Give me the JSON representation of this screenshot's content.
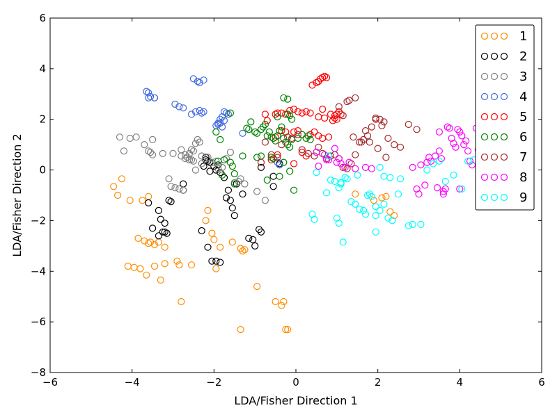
{
  "chart_data": {
    "type": "scatter",
    "title": "",
    "xlabel": "LDA/Fisher Direction 1",
    "ylabel": "LDA/Fisher Direction 2",
    "xlim": [
      -6,
      6
    ],
    "ylim": [
      -8,
      6
    ],
    "xticks": [
      -6,
      -4,
      -2,
      0,
      2,
      4,
      6
    ],
    "yticks": [
      -8,
      -6,
      -4,
      -2,
      0,
      2,
      4,
      6
    ],
    "xtick_labels": [
      "−6",
      "−4",
      "−2",
      "0",
      "2",
      "4",
      "6"
    ],
    "ytick_labels": [
      "−8",
      "−6",
      "−4",
      "−2",
      "0",
      "2",
      "4",
      "6"
    ],
    "grid": false,
    "legend_position": "top-right",
    "marker": "open-circle",
    "series": [
      {
        "name": "1",
        "color": "#ff8c00",
        "x": [
          -4.45,
          -4.35,
          -4.25,
          -4.05,
          -3.75,
          -3.6,
          -3.85,
          -3.7,
          -3.6,
          -3.45,
          -3.55,
          -3.35,
          -3.2,
          -4.1,
          -3.95,
          -3.8,
          -3.65,
          -3.45,
          -3.3,
          -3.2,
          -2.9,
          -2.85,
          -2.55,
          -2.15,
          -2.2,
          -2.05,
          -2.0,
          -1.85,
          -1.95,
          -1.55,
          -1.35,
          -1.25,
          -1.3,
          -2.8,
          -0.95,
          -0.5,
          -0.35,
          -0.3,
          -0.25,
          -0.2,
          -1.35,
          1.45,
          1.9,
          2.1,
          2.2,
          2.3,
          2.4
        ],
        "y": [
          -0.65,
          -1.0,
          -0.35,
          -1.2,
          -1.2,
          -1.05,
          -2.7,
          -2.8,
          -2.9,
          -2.95,
          -2.85,
          -2.85,
          -3.05,
          -3.8,
          -3.85,
          -3.9,
          -4.15,
          -3.8,
          -4.35,
          -3.7,
          -3.6,
          -3.75,
          -3.75,
          -1.6,
          -2.0,
          -2.5,
          -2.75,
          -3.05,
          -3.9,
          -2.85,
          -3.1,
          -3.15,
          -3.2,
          -5.2,
          -4.6,
          -5.2,
          -5.35,
          -5.2,
          -6.3,
          -6.3,
          -6.3,
          -0.95,
          -1.2,
          -1.1,
          -1.05,
          -1.65,
          -1.8
        ]
      },
      {
        "name": "2",
        "color": "#000000",
        "x": [
          -3.6,
          -3.5,
          -3.35,
          -3.3,
          -3.2,
          -3.1,
          -3.05,
          -3.2,
          -3.15,
          -3.35,
          -3.25,
          -2.75,
          -2.75,
          -2.2,
          -2.1,
          -2.0,
          -1.9,
          -1.95,
          -1.85,
          -1.75,
          -1.65,
          -1.6,
          -1.55,
          -1.5,
          -1.45,
          -1.3,
          -1.15,
          -1.05,
          -1.0,
          -0.9,
          -0.85,
          -1.95,
          -1.85,
          -2.05,
          -2.15,
          -2.3,
          -2.2,
          -2.1,
          -0.55,
          -0.4,
          -0.55,
          -0.85,
          -1.7,
          -2.25,
          -2.15
        ],
        "y": [
          -1.3,
          -2.3,
          -1.6,
          -1.95,
          -2.1,
          -1.2,
          -1.25,
          -2.45,
          -2.5,
          -2.6,
          -2.45,
          -0.55,
          -0.8,
          0.5,
          0.3,
          0.15,
          0.2,
          0.0,
          -0.1,
          -0.3,
          -0.8,
          -1.2,
          -1.5,
          -1.8,
          -0.55,
          -0.95,
          -2.7,
          -2.75,
          -3.0,
          -2.35,
          -2.45,
          -3.6,
          -3.65,
          -3.6,
          -3.05,
          -2.4,
          0.4,
          -0.05,
          -0.25,
          0.25,
          -0.65,
          0.1,
          -1.1,
          0.15,
          0.35
        ]
      },
      {
        "name": "3",
        "color": "#808080",
        "x": [
          -4.3,
          -4.2,
          -4.05,
          -3.9,
          -3.7,
          -3.6,
          -3.5,
          -3.55,
          -3.5,
          -3.25,
          -3.1,
          -3.05,
          -2.95,
          -2.85,
          -2.75,
          -2.7,
          -2.65,
          -2.6,
          -2.55,
          -2.5,
          -2.45,
          -2.4,
          -2.35,
          -2.6,
          -2.5,
          -2.45,
          -2.3,
          -2.15,
          -2.05,
          -1.95,
          -1.9,
          -1.8,
          -1.7,
          -1.6,
          -1.5,
          -1.4,
          -1.35,
          -1.25,
          -2.8,
          -2.7,
          -3.0,
          -2.8,
          -0.95,
          -0.75,
          -2.55,
          -2.3
        ],
        "y": [
          1.3,
          0.75,
          1.25,
          1.3,
          1.0,
          0.75,
          0.6,
          0.7,
          1.2,
          0.65,
          -0.35,
          -0.65,
          -0.7,
          -0.75,
          -0.8,
          0.6,
          0.5,
          0.4,
          0.8,
          0.75,
          1.05,
          1.2,
          1.1,
          0.65,
          0.35,
          0.0,
          0.55,
          0.5,
          0.3,
          0.35,
          0.05,
          0.1,
          0.45,
          0.7,
          -0.5,
          -0.45,
          -0.35,
          -0.55,
          0.55,
          0.45,
          0.65,
          0.8,
          -0.85,
          -1.2,
          0.4,
          0.25
        ]
      },
      {
        "name": "4",
        "color": "#4169e1",
        "x": [
          -3.65,
          -3.6,
          -3.55,
          -3.45,
          -3.6,
          -3.45,
          -2.95,
          -2.85,
          -2.75,
          -2.55,
          -2.45,
          -2.35,
          -2.3,
          -2.25,
          -2.5,
          -2.4,
          -2.35,
          -2.25,
          -1.95,
          -1.9,
          -1.85,
          -1.8,
          -1.75,
          -1.7,
          -1.65,
          -1.75,
          -1.8,
          -1.9,
          -1.85,
          -1.3,
          -0.45,
          -0.4
        ],
        "y": [
          3.1,
          3.05,
          2.9,
          2.85,
          2.85,
          2.85,
          2.6,
          2.5,
          2.45,
          2.2,
          2.3,
          2.35,
          2.25,
          2.3,
          3.6,
          3.5,
          3.45,
          3.55,
          1.75,
          1.85,
          2.0,
          2.1,
          2.3,
          2.25,
          2.2,
          1.95,
          1.7,
          1.8,
          1.85,
          1.45,
          0.3,
          0.2
        ]
      },
      {
        "name": "5",
        "color": "#ff0000",
        "x": [
          -0.75,
          -0.7,
          -0.5,
          -0.45,
          -0.35,
          -0.25,
          -0.15,
          -0.05,
          0.05,
          0.15,
          0.25,
          0.35,
          0.4,
          0.5,
          0.55,
          0.6,
          0.65,
          0.7,
          0.75,
          0.65,
          0.7,
          0.55,
          0.85,
          0.95,
          1.0,
          1.05,
          1.1,
          0.95,
          0.9,
          1.0,
          0.55,
          0.65,
          0.8,
          0.45,
          0.35,
          -0.35,
          -0.25,
          -0.05,
          0.05,
          -0.5,
          -0.45,
          -0.6,
          0.25,
          0.15,
          -0.05
        ],
        "y": [
          2.2,
          1.95,
          2.2,
          2.25,
          2.25,
          2.2,
          2.35,
          2.4,
          2.3,
          2.25,
          2.3,
          2.25,
          3.35,
          3.45,
          3.5,
          3.6,
          3.65,
          3.7,
          3.65,
          2.4,
          2.05,
          2.1,
          2.2,
          2.15,
          2.2,
          2.3,
          2.2,
          2.05,
          1.95,
          2.0,
          1.35,
          1.25,
          1.3,
          1.5,
          1.4,
          1.55,
          1.5,
          1.5,
          1.55,
          1.3,
          0.6,
          0.4,
          0.55,
          0.7,
          0.25
        ]
      },
      {
        "name": "6",
        "color": "#008000",
        "x": [
          -1.95,
          -1.85,
          -1.75,
          -1.6,
          -1.55,
          -1.5,
          -1.3,
          -1.2,
          -1.15,
          -1.1,
          -1.0,
          -0.95,
          -0.85,
          -0.8,
          -0.75,
          -0.7,
          -0.65,
          -0.6,
          -0.55,
          -0.5,
          -0.45,
          -0.4,
          -0.35,
          -0.3,
          -0.25,
          -0.2,
          -0.15,
          -0.1,
          0.05,
          0.15,
          0.25,
          0.3,
          0.35,
          -0.3,
          -0.2,
          -0.15,
          -0.95,
          -0.85,
          -0.7,
          -1.5,
          -1.6,
          -1.9,
          -1.8,
          -0.1,
          -0.2,
          -0.45,
          -0.55,
          -0.3,
          -0.15,
          -0.05,
          -0.6,
          -0.4
        ],
        "y": [
          1.5,
          1.2,
          0.4,
          0.3,
          0.15,
          -0.15,
          0.55,
          1.65,
          1.6,
          1.9,
          1.5,
          1.45,
          1.6,
          1.7,
          1.8,
          1.35,
          1.5,
          1.3,
          1.25,
          1.15,
          1.35,
          1.55,
          1.7,
          1.25,
          1.1,
          1.0,
          0.9,
          1.2,
          1.25,
          1.4,
          1.25,
          1.35,
          1.2,
          2.85,
          2.8,
          2.15,
          0.5,
          0.55,
          -0.4,
          -0.55,
          2.25,
          0.35,
          -0.2,
          2.0,
          2.2,
          2.1,
          0.45,
          0.3,
          -0.05,
          -0.8,
          0.5,
          -0.25
        ]
      },
      {
        "name": "7",
        "color": "#a52a2a",
        "x": [
          -0.85,
          -0.75,
          -0.6,
          -0.45,
          -0.35,
          -0.2,
          -0.1,
          0.05,
          0.15,
          0.3,
          0.45,
          0.55,
          0.65,
          0.75,
          0.85,
          0.95,
          1.05,
          1.15,
          1.25,
          1.35,
          1.45,
          1.55,
          1.65,
          1.75,
          1.85,
          1.95,
          2.05,
          2.15,
          2.25,
          2.4,
          2.55,
          2.75,
          2.95,
          1.3,
          1.45,
          1.05,
          1.15,
          1.25,
          1.4,
          1.6,
          1.7,
          1.8,
          2.0,
          1.95,
          2.1,
          2.2
        ],
        "y": [
          0.3,
          1.1,
          0.6,
          0.5,
          1.0,
          1.3,
          1.25,
          1.4,
          0.8,
          0.65,
          0.55,
          0.9,
          0.65,
          0.45,
          0.55,
          0.6,
          0.45,
          0.1,
          0.05,
          0.25,
          0.6,
          1.1,
          1.2,
          1.35,
          1.7,
          2.0,
          2.0,
          1.9,
          1.25,
          1.0,
          0.9,
          1.8,
          1.6,
          2.75,
          2.85,
          2.5,
          2.15,
          2.7,
          1.3,
          1.1,
          1.55,
          1.1,
          0.85,
          2.05,
          1.75,
          0.5
        ]
      },
      {
        "name": "8",
        "color": "#ff00ff",
        "x": [
          0.5,
          0.55,
          0.7,
          0.75,
          0.8,
          0.95,
          1.0,
          1.05,
          1.1,
          1.2,
          1.3,
          1.45,
          1.7,
          1.85,
          2.95,
          3.0,
          3.15,
          3.25,
          3.3,
          3.4,
          3.5,
          3.55,
          3.6,
          3.65,
          3.7,
          3.75,
          3.8,
          3.85,
          3.9,
          3.95,
          4.0,
          4.05,
          4.1,
          4.15,
          4.2,
          4.25,
          4.3,
          4.4,
          4.45,
          2.85,
          3.05,
          3.2,
          3.45,
          3.6,
          4.0,
          3.5
        ],
        "y": [
          0.7,
          0.15,
          0.6,
          0.4,
          0.4,
          0.85,
          0.3,
          0.45,
          0.25,
          0.1,
          0.3,
          0.05,
          0.1,
          0.05,
          -0.75,
          -0.95,
          -0.6,
          0.5,
          0.35,
          0.55,
          0.75,
          0.45,
          -0.85,
          -0.75,
          1.7,
          1.65,
          1.25,
          1.05,
          0.9,
          1.6,
          1.5,
          1.35,
          1.0,
          1.15,
          0.75,
          0.35,
          0.2,
          1.65,
          0.8,
          0.1,
          0.2,
          0.3,
          -0.7,
          -0.95,
          -0.75,
          1.5
        ]
      },
      {
        "name": "9",
        "color": "#00ffff",
        "x": [
          0.4,
          0.45,
          0.5,
          0.75,
          0.85,
          0.95,
          1.0,
          1.05,
          1.1,
          1.2,
          1.35,
          1.45,
          1.55,
          1.65,
          1.75,
          1.85,
          1.95,
          2.05,
          2.15,
          2.25,
          2.35,
          2.5,
          2.55,
          2.75,
          2.85,
          3.05,
          3.2,
          3.35,
          3.5,
          3.65,
          3.85,
          4.05,
          4.2,
          4.35,
          4.5,
          1.15,
          1.05,
          1.25,
          1.5,
          1.7,
          1.8,
          1.95,
          2.05,
          2.15,
          2.3,
          0.8,
          1.1,
          1.95
        ],
        "y": [
          -1.75,
          -1.95,
          -0.1,
          -0.9,
          -0.4,
          -0.45,
          -1.9,
          -2.1,
          -0.55,
          -0.3,
          -1.25,
          -1.35,
          -1.55,
          -1.6,
          -1.0,
          -1.05,
          -1.8,
          -1.6,
          -1.35,
          -1.9,
          -2.0,
          -0.95,
          -0.35,
          -2.2,
          -2.15,
          -2.15,
          0.0,
          0.25,
          0.35,
          -0.45,
          -0.2,
          -0.75,
          0.35,
          0.4,
          -0.4,
          -2.85,
          -0.7,
          -0.35,
          -0.2,
          -1.75,
          -0.95,
          -1.45,
          0.1,
          -0.25,
          -0.3,
          0.55,
          -0.5,
          -2.45
        ]
      }
    ]
  }
}
